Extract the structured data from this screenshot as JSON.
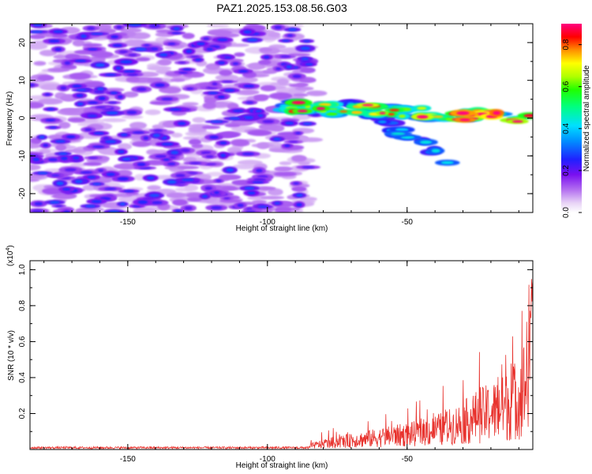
{
  "title": "PAZ1.2025.153.08.56.G03",
  "colors": {
    "snr_line": "#e8332e",
    "axis": "#000000",
    "background": "#ffffff"
  },
  "chart_data": [
    {
      "type": "heatmap",
      "xlabel": "Height of straight line (km)",
      "ylabel": "Frequency (Hz)",
      "xlim": [
        -185,
        -5
      ],
      "ylim": [
        -25,
        25
      ],
      "xticks": [
        -150,
        -100,
        -50
      ],
      "yticks": [
        -20,
        -10,
        0,
        10,
        20
      ],
      "colorbar": {
        "label": "Normalized spectral amplitude",
        "range": [
          0,
          0.9
        ],
        "ticks": [
          0.0,
          0.2,
          0.4,
          0.6,
          0.8
        ],
        "colormap": "rainbow (white-purple-blue-cyan-green-yellow-red-magenta)"
      },
      "features": [
        {
          "segment": "noise",
          "x_range": [
            -185,
            -85
          ],
          "freq_range": [
            -25,
            25
          ],
          "amplitude_range": [
            0.02,
            0.12
          ]
        },
        {
          "segment": "main tone",
          "x_range": [
            -94,
            -5
          ],
          "freq_start": 3,
          "freq_end": 0,
          "amplitude_range": [
            0.2,
            0.9
          ]
        },
        {
          "segment": "side branch",
          "x_range": [
            -75,
            -35
          ],
          "freq_start": 6,
          "freq_end": -11,
          "amplitude_range": [
            0.15,
            0.3
          ]
        }
      ]
    },
    {
      "type": "line",
      "xlabel": "Height of straight line (km)",
      "ylabel": "SNR (10 * v/v)",
      "y_multiplier": "(x10",
      "y_multiplier_exp": "4",
      "xlim": [
        -185,
        -5
      ],
      "ylim": [
        0,
        1.05
      ],
      "xticks": [
        -150,
        -100,
        -50
      ],
      "yticks": [
        0.2,
        0.4,
        0.6,
        0.8,
        1.0
      ],
      "series": [
        {
          "x": [
            -185,
            -160,
            -130,
            -100,
            -90,
            -85,
            -80,
            -75,
            -70,
            -65,
            -60,
            -55,
            -50,
            -45,
            -40,
            -35,
            -30,
            -25,
            -20,
            -15,
            -10,
            -7,
            -5
          ],
          "values": [
            0.01,
            0.01,
            0.01,
            0.01,
            0.01,
            0.02,
            0.04,
            0.05,
            0.06,
            0.07,
            0.08,
            0.09,
            0.1,
            0.11,
            0.13,
            0.15,
            0.18,
            0.22,
            0.25,
            0.28,
            0.35,
            0.45,
            1.03
          ]
        }
      ]
    }
  ]
}
